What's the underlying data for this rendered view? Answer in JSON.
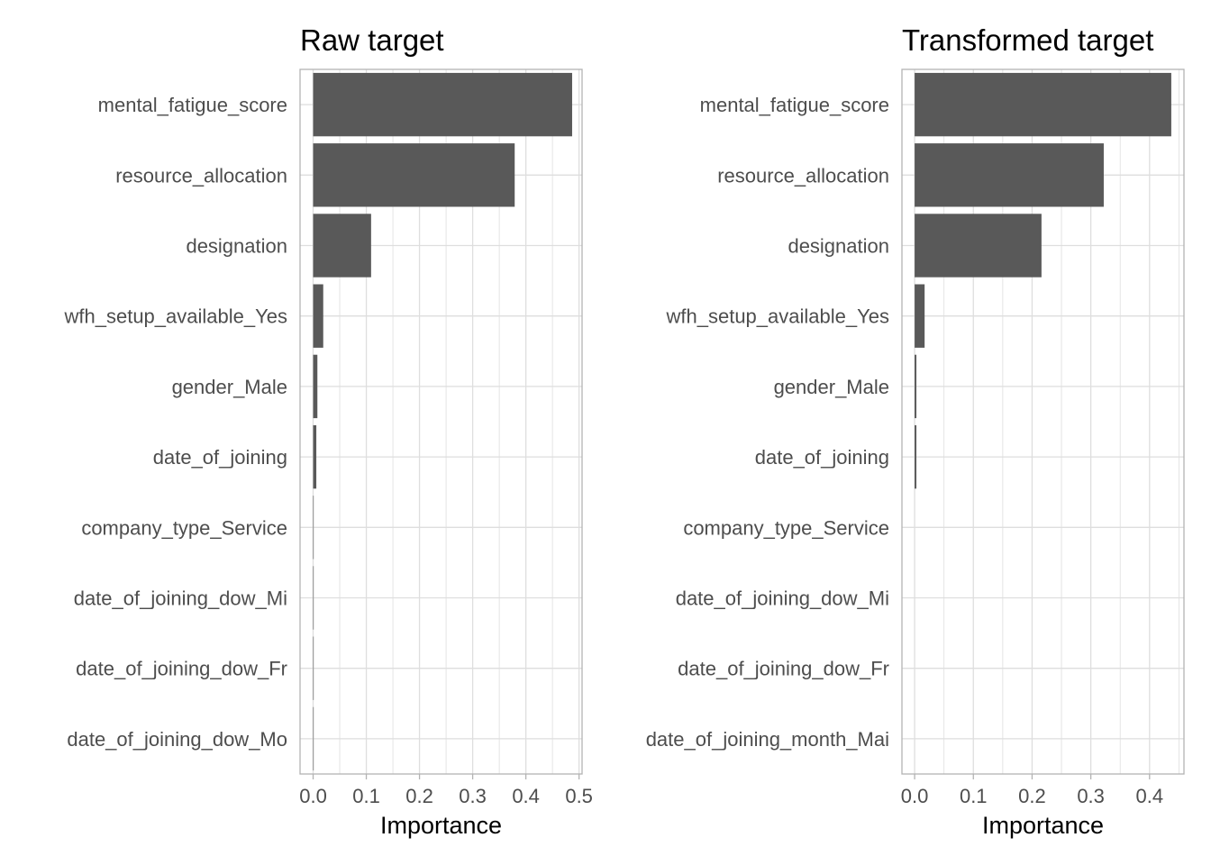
{
  "colors": {
    "bar": "#595959",
    "grid": "#dedede",
    "border": "#b3b3b3",
    "text": "#4d4d4d",
    "title": "#000000"
  },
  "chart_data": [
    {
      "type": "bar",
      "orientation": "horizontal",
      "title": "Raw target",
      "xlabel": "Importance",
      "ylabel": "",
      "xlim": [
        -0.0246,
        0.5057
      ],
      "xticks": [
        0.0,
        0.1,
        0.2,
        0.3,
        0.4,
        0.5
      ],
      "xtick_labels": [
        "0.0",
        "0.1",
        "0.2",
        "0.3",
        "0.4",
        "0.5"
      ],
      "grid": true,
      "categories": [
        "mental_fatigue_score",
        "resource_allocation",
        "designation",
        "wfh_setup_available_Yes",
        "gender_Male",
        "date_of_joining",
        "company_type_Service",
        "date_of_joining_dow_Mi",
        "date_of_joining_dow_Fr",
        "date_of_joining_dow_Mo"
      ],
      "values": [
        0.487,
        0.379,
        0.109,
        0.019,
        0.008,
        0.006,
        0.001,
        0.001,
        0.001,
        0.001
      ]
    },
    {
      "type": "bar",
      "orientation": "horizontal",
      "title": "Transformed target",
      "xlabel": "Importance",
      "ylabel": "",
      "xlim": [
        -0.0216,
        0.4586
      ],
      "xticks": [
        0.0,
        0.1,
        0.2,
        0.3,
        0.4
      ],
      "xtick_labels": [
        "0.0",
        "0.1",
        "0.2",
        "0.3",
        "0.4"
      ],
      "grid": true,
      "categories": [
        "mental_fatigue_score",
        "resource_allocation",
        "designation",
        "wfh_setup_available_Yes",
        "gender_Male",
        "date_of_joining",
        "company_type_Service",
        "date_of_joining_dow_Mi",
        "date_of_joining_dow_Fr",
        "date_of_joining_month_Mai"
      ],
      "values": [
        0.437,
        0.322,
        0.216,
        0.017,
        0.003,
        0.003,
        0.0,
        0.0,
        0.0,
        0.0
      ]
    }
  ]
}
